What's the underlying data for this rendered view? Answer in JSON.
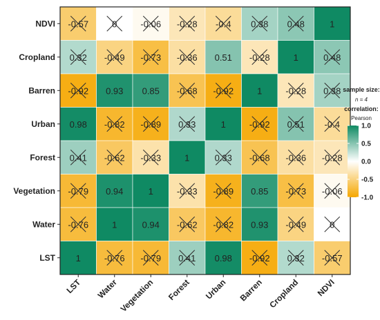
{
  "chart_data": {
    "type": "heatmap",
    "rows": [
      "NDVI",
      "Cropland",
      "Barren",
      "Urban",
      "Forest",
      "Vegetation",
      "Water",
      "LST"
    ],
    "columns": [
      "LST",
      "Water",
      "Vegetation",
      "Forest",
      "Urban",
      "Barren",
      "Cropland",
      "NDVI"
    ],
    "values": [
      [
        -0.57,
        0,
        -0.06,
        -0.28,
        -0.4,
        0.38,
        0.48,
        1
      ],
      [
        0.32,
        -0.49,
        -0.73,
        -0.36,
        0.51,
        -0.28,
        1,
        0.48
      ],
      [
        -0.92,
        0.93,
        0.85,
        -0.68,
        -0.92,
        1,
        -0.28,
        0.38
      ],
      [
        0.98,
        -0.82,
        -0.89,
        0.33,
        1,
        -0.92,
        0.51,
        -0.4
      ],
      [
        0.41,
        -0.62,
        -0.33,
        1,
        0.33,
        -0.68,
        -0.36,
        -0.28
      ],
      [
        -0.79,
        0.94,
        1,
        -0.33,
        -0.89,
        0.85,
        -0.73,
        -0.06
      ],
      [
        -0.76,
        1,
        0.94,
        -0.62,
        -0.82,
        0.93,
        -0.49,
        0
      ],
      [
        1,
        -0.76,
        -0.79,
        0.41,
        0.98,
        -0.92,
        0.32,
        -0.57
      ]
    ],
    "labels": [
      [
        "-0.57",
        "0",
        "-0.06",
        "-0.28",
        "-0.4",
        "0.38",
        "0.48",
        "1"
      ],
      [
        "0.32",
        "-0.49",
        "-0.73",
        "-0.36",
        "0.51",
        "-0.28",
        "1",
        "0.48"
      ],
      [
        "-0.92",
        "0.93",
        "0.85",
        "-0.68",
        "-0.92",
        "1",
        "-0.28",
        "0.38"
      ],
      [
        "0.98",
        "-0.82",
        "-0.89",
        "0.33",
        "1",
        "-0.92",
        "0.51",
        "-0.4"
      ],
      [
        "0.41",
        "-0.62",
        "-0.33",
        "1",
        "0.33",
        "-0.68",
        "-0.36",
        "-0.28"
      ],
      [
        "-0.79",
        "0.94",
        "1",
        "-0.33",
        "-0.89",
        "0.85",
        "-0.73",
        "-0.06"
      ],
      [
        "-0.76",
        "1",
        "0.94",
        "-0.62",
        "-0.82",
        "0.93",
        "-0.49",
        "0"
      ],
      [
        "1",
        "-0.76",
        "-0.79",
        "0.41",
        "0.98",
        "-0.92",
        "0.32",
        "-0.57"
      ]
    ],
    "crossed": [
      [
        true,
        true,
        true,
        true,
        true,
        true,
        true,
        false
      ],
      [
        true,
        true,
        true,
        true,
        false,
        true,
        false,
        true
      ],
      [
        true,
        false,
        false,
        true,
        true,
        false,
        true,
        true
      ],
      [
        false,
        true,
        true,
        true,
        false,
        true,
        true,
        true
      ],
      [
        true,
        true,
        true,
        false,
        true,
        true,
        true,
        true
      ],
      [
        true,
        false,
        false,
        true,
        true,
        false,
        true,
        true
      ],
      [
        true,
        false,
        false,
        true,
        true,
        false,
        true,
        true
      ],
      [
        false,
        true,
        true,
        true,
        false,
        true,
        true,
        true
      ]
    ],
    "color_scale": {
      "low": "#f5a700",
      "mid": "#ffffff",
      "high": "#0f8a63",
      "domain": [
        -1,
        1
      ]
    },
    "legend": {
      "title_line1": "sample size:",
      "sample_size": "n = 4",
      "title_line2": "correlation:",
      "method": "Pearson",
      "ticks": [
        "1.0",
        "0.5",
        "0.0",
        "-0.5",
        "-1.0"
      ],
      "tick_values": [
        1,
        0.5,
        0,
        -0.5,
        -1
      ],
      "placement": "right"
    }
  }
}
